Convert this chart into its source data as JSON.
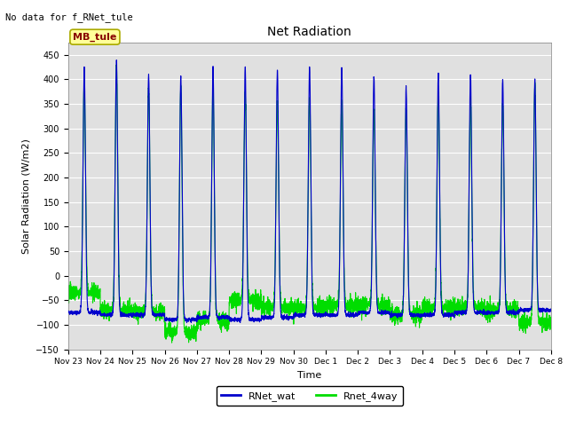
{
  "title": "Net Radiation",
  "subtitle": "No data for f_RNet_tule",
  "ylabel": "Solar Radiation (W/m2)",
  "xlabel": "Time",
  "ylim": [
    -150,
    475
  ],
  "yticks": [
    -150,
    -100,
    -50,
    0,
    50,
    100,
    150,
    200,
    250,
    300,
    350,
    400,
    450
  ],
  "color_blue": "#0000CC",
  "color_green": "#00DD00",
  "bg_color": "#E0E0E0",
  "legend_label1": "RNet_wat",
  "legend_label2": "Rnet_4way",
  "mb_tule_label": "MB_tule",
  "mb_tule_text_color": "#880000",
  "xtick_labels": [
    "Nov 23",
    "Nov 24",
    "Nov 25",
    "Nov 26",
    "Nov 27",
    "Nov 28",
    "Nov 29",
    "Nov 30",
    "Dec 1",
    "Dec 2",
    "Dec 3",
    "Dec 4",
    "Dec 5",
    "Dec 6",
    "Dec 7",
    "Dec 8"
  ],
  "num_days": 15,
  "peak_blue": [
    425,
    440,
    410,
    405,
    425,
    425,
    420,
    425,
    425,
    405,
    385,
    410,
    410,
    400,
    400
  ],
  "peak_green": [
    390,
    430,
    380,
    385,
    385,
    370,
    355,
    360,
    350,
    340,
    340,
    370,
    360,
    350,
    390
  ],
  "night_blue": [
    -75,
    -80,
    -80,
    -90,
    -85,
    -90,
    -85,
    -80,
    -80,
    -75,
    -80,
    -80,
    -75,
    -75,
    -70
  ],
  "night_green": [
    -35,
    -70,
    -75,
    -115,
    -90,
    -50,
    -65,
    -65,
    -60,
    -60,
    -80,
    -65,
    -65,
    -70,
    -95
  ]
}
